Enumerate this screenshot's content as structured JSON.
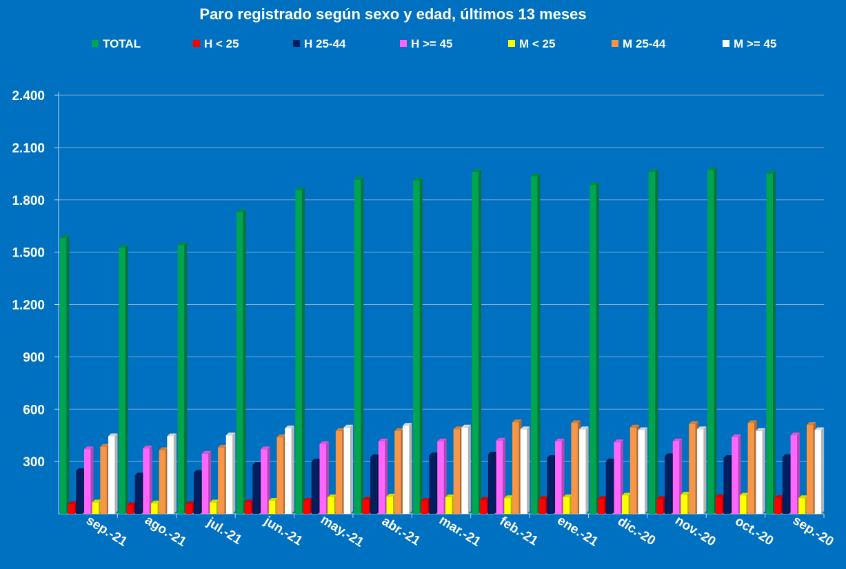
{
  "chart_data": {
    "type": "bar",
    "title": "Paro registrado según sexo y edad, últimos 13 meses",
    "xlabel": "",
    "ylabel": "",
    "ylim": [
      0,
      2400
    ],
    "yticks": [
      300,
      600,
      900,
      1200,
      1500,
      1800,
      2100,
      2400
    ],
    "ytick_labels": [
      "300",
      "600",
      "900",
      "1.200",
      "1.500",
      "1.800",
      "2.100",
      "2.400"
    ],
    "grid": true,
    "legend_position": "top",
    "categories": [
      "sep.-21",
      "ago.-21",
      "jul.-21",
      "jun.-21",
      "may.-21",
      "abr.-21",
      "mar.-21",
      "feb.-21",
      "ene.-21",
      "dic.-20",
      "nov.-20",
      "oct.-20",
      "sep.-20"
    ],
    "series": [
      {
        "name": "TOTAL",
        "color": "#00A550",
        "values": [
          1580,
          1525,
          1540,
          1730,
          1855,
          1915,
          1910,
          1960,
          1935,
          1885,
          1960,
          1970,
          1950
        ]
      },
      {
        "name": "H < 25",
        "color": "#FF0000",
        "values": [
          55,
          50,
          55,
          65,
          75,
          80,
          75,
          80,
          85,
          85,
          85,
          95,
          90
        ]
      },
      {
        "name": "H 25-44",
        "color": "#001F60",
        "values": [
          245,
          220,
          235,
          280,
          300,
          325,
          335,
          340,
          320,
          300,
          330,
          320,
          325
        ]
      },
      {
        "name": "H >= 45",
        "color": "#FF66FF",
        "values": [
          370,
          375,
          345,
          370,
          400,
          415,
          415,
          420,
          415,
          410,
          415,
          440,
          450
        ]
      },
      {
        "name": "M < 25",
        "color": "#FFFF00",
        "values": [
          65,
          60,
          65,
          75,
          95,
          100,
          95,
          90,
          95,
          105,
          110,
          105,
          90
        ]
      },
      {
        "name": "M 25-44",
        "color": "#F79646",
        "values": [
          385,
          365,
          380,
          440,
          475,
          475,
          485,
          525,
          520,
          495,
          515,
          520,
          510
        ]
      },
      {
        "name": "M >= 45",
        "color": "#FFFFFF",
        "values": [
          445,
          445,
          450,
          490,
          495,
          505,
          495,
          485,
          485,
          480,
          485,
          475,
          480
        ]
      }
    ]
  }
}
